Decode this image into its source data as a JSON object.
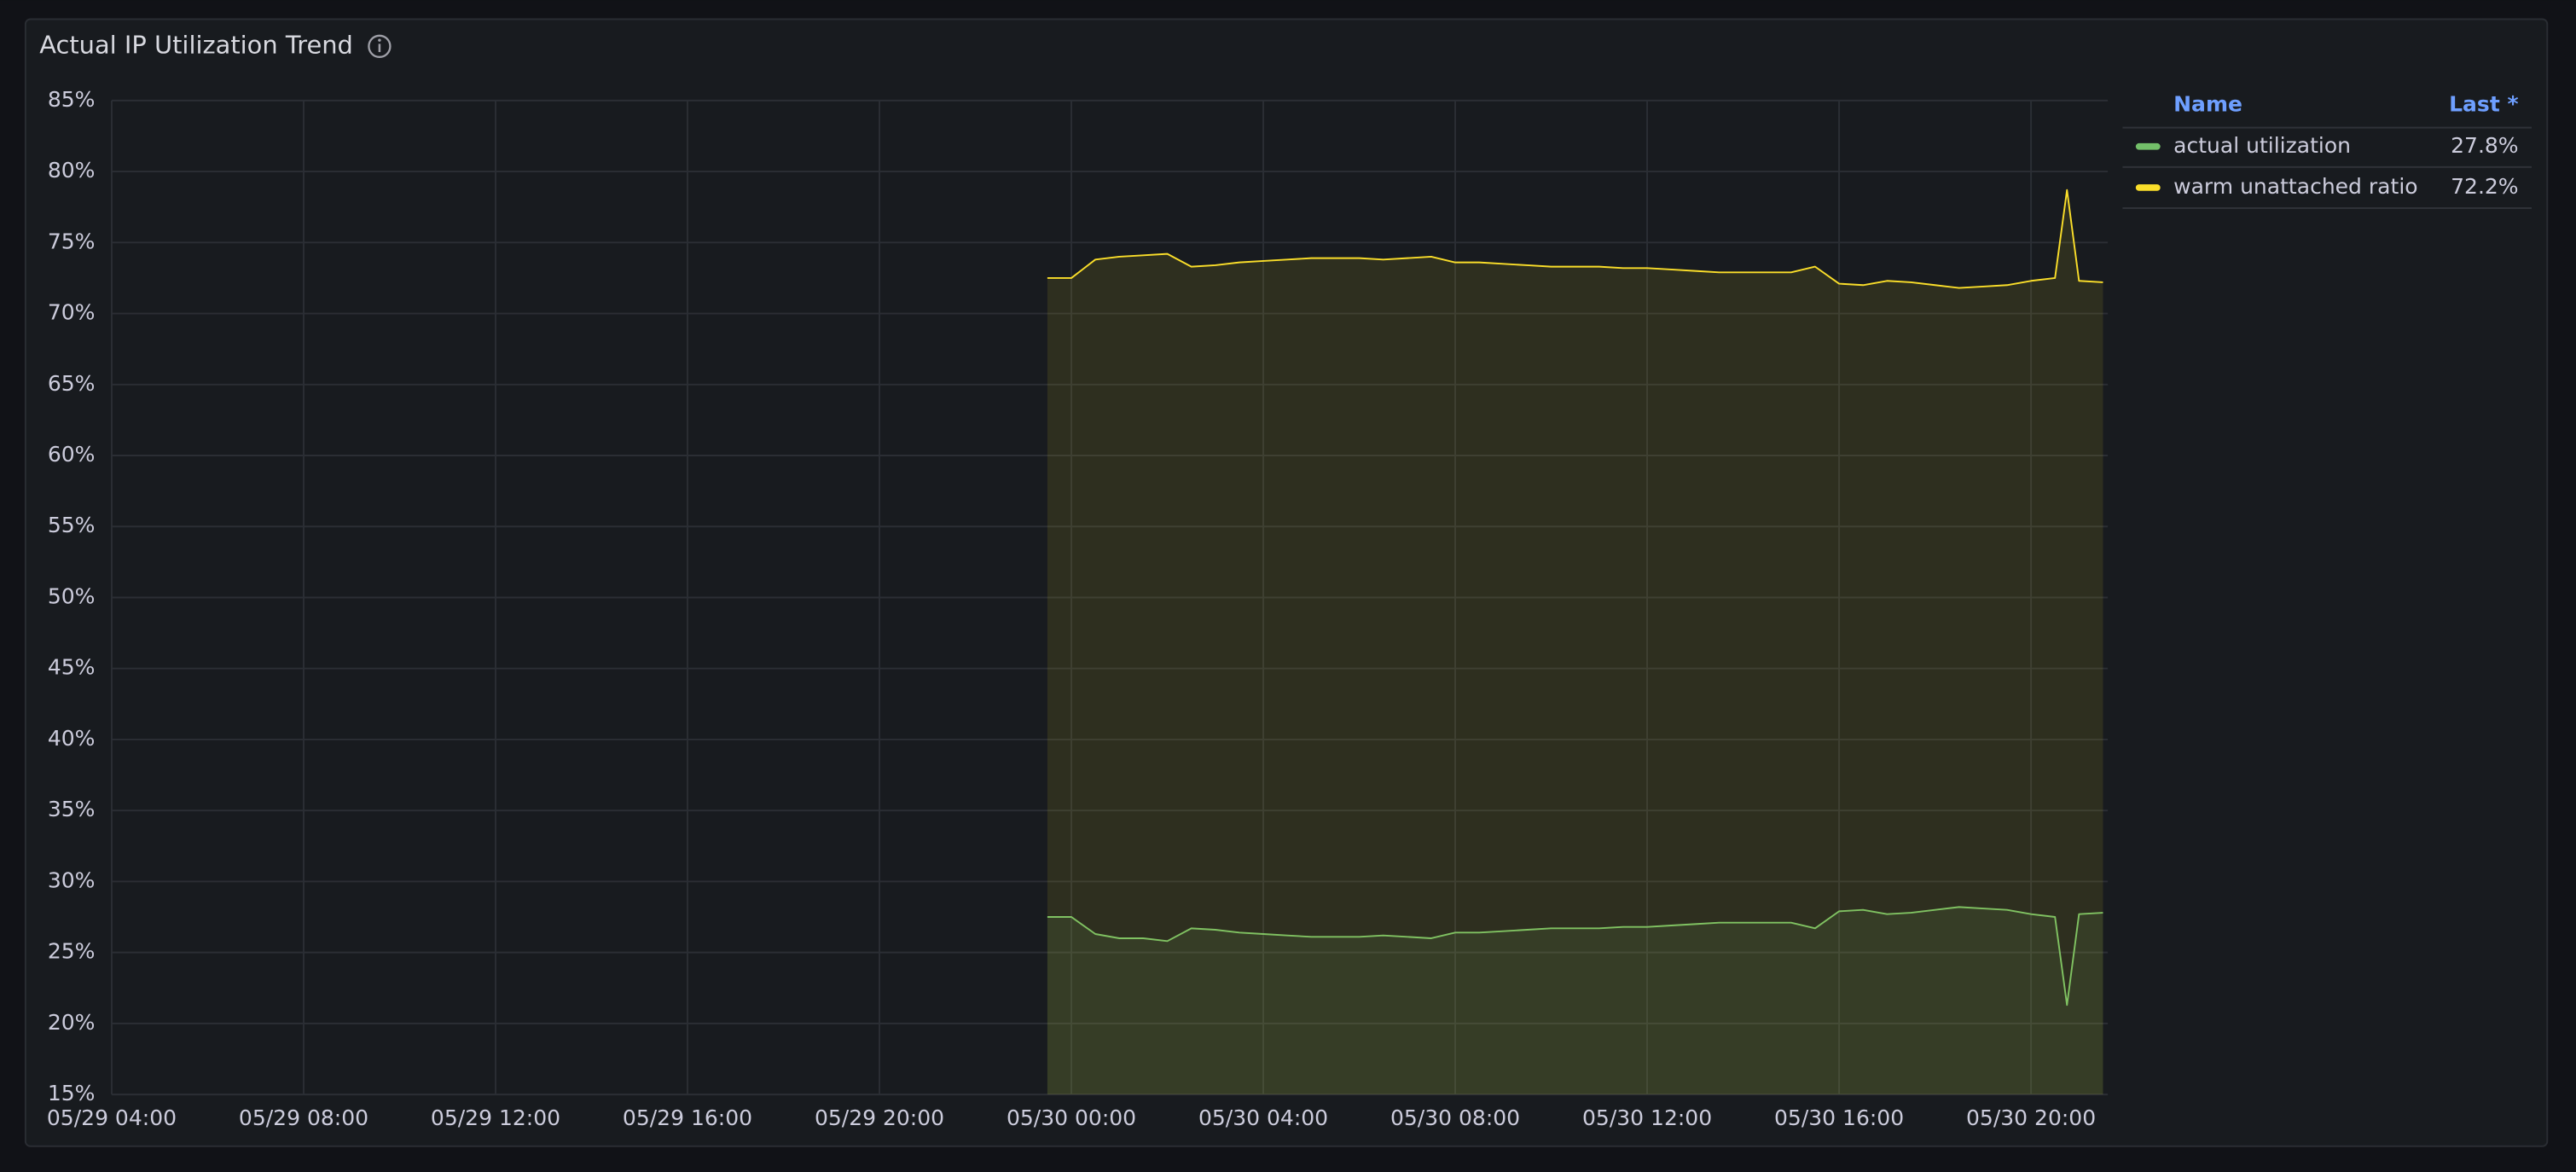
{
  "chart_data": {
    "type": "line",
    "title": "Actual IP Utilization Trend",
    "legend_columns": [
      "Name",
      "Last *"
    ],
    "x": [
      "05/29 23:30",
      "05/30 00:00",
      "05/30 00:30",
      "05/30 01:00",
      "05/30 01:30",
      "05/30 02:00",
      "05/30 02:30",
      "05/30 03:00",
      "05/30 03:30",
      "05/30 04:00",
      "05/30 04:30",
      "05/30 05:00",
      "05/30 05:30",
      "05/30 06:00",
      "05/30 06:30",
      "05/30 07:00",
      "05/30 07:30",
      "05/30 08:00",
      "05/30 08:30",
      "05/30 09:00",
      "05/30 09:30",
      "05/30 10:00",
      "05/30 10:30",
      "05/30 11:00",
      "05/30 11:30",
      "05/30 12:00",
      "05/30 12:30",
      "05/30 13:00",
      "05/30 13:30",
      "05/30 14:00",
      "05/30 14:30",
      "05/30 15:00",
      "05/30 15:30",
      "05/30 16:00",
      "05/30 16:30",
      "05/30 17:00",
      "05/30 17:30",
      "05/30 18:00",
      "05/30 18:30",
      "05/30 19:00",
      "05/30 19:30",
      "05/30 20:00",
      "05/30 20:30",
      "05/30 20:45",
      "05/30 21:00",
      "05/30 21:30"
    ],
    "series": [
      {
        "name": "actual utilization",
        "color": "#73bf69",
        "values": [
          27.5,
          27.5,
          26.3,
          26,
          26,
          25.8,
          26.7,
          26.6,
          26.4,
          26.3,
          26.2,
          26.1,
          26.1,
          26.1,
          26.2,
          26.1,
          26,
          26.4,
          26.4,
          26.5,
          26.6,
          26.7,
          26.7,
          26.7,
          26.8,
          26.8,
          26.9,
          27,
          27.1,
          27.1,
          27.1,
          27.1,
          26.7,
          27.9,
          28,
          27.7,
          27.8,
          28,
          28.2,
          28.1,
          28,
          27.7,
          27.5,
          21.3,
          27.7,
          27.8
        ],
        "last": {
          "value": 27.8,
          "label": "27.8%"
        }
      },
      {
        "name": "warm unattached ratio",
        "color": "#fade2a",
        "values": [
          72.5,
          72.5,
          73.8,
          74,
          74.1,
          74.2,
          73.3,
          73.4,
          73.6,
          73.7,
          73.8,
          73.9,
          73.9,
          73.9,
          73.8,
          73.9,
          74,
          73.6,
          73.6,
          73.5,
          73.4,
          73.3,
          73.3,
          73.3,
          73.2,
          73.2,
          73.1,
          73,
          72.9,
          72.9,
          72.9,
          72.9,
          73.3,
          72.1,
          72,
          72.3,
          72.2,
          72,
          71.8,
          71.9,
          72,
          72.3,
          72.5,
          78.7,
          72.3,
          72.2
        ],
        "last": {
          "value": 72.2,
          "label": "72.2%"
        }
      }
    ],
    "xlim": [
      "05/29 04:00",
      "05/30 21:36"
    ],
    "xticks": [
      "05/29 04:00",
      "05/29 08:00",
      "05/29 12:00",
      "05/29 16:00",
      "05/29 20:00",
      "05/30 00:00",
      "05/30 04:00",
      "05/30 08:00",
      "05/30 12:00",
      "05/30 16:00",
      "05/30 20:00"
    ],
    "ylim": [
      15,
      85
    ],
    "yticks": [
      {
        "value": 15,
        "label": "15%"
      },
      {
        "value": 20,
        "label": "20%"
      },
      {
        "value": 25,
        "label": "25%"
      },
      {
        "value": 30,
        "label": "30%"
      },
      {
        "value": 35,
        "label": "35%"
      },
      {
        "value": 40,
        "label": "40%"
      },
      {
        "value": 45,
        "label": "45%"
      },
      {
        "value": 50,
        "label": "50%"
      },
      {
        "value": 55,
        "label": "55%"
      },
      {
        "value": 60,
        "label": "60%"
      },
      {
        "value": 65,
        "label": "65%"
      },
      {
        "value": 70,
        "label": "70%"
      },
      {
        "value": 75,
        "label": "75%"
      },
      {
        "value": 80,
        "label": "80%"
      },
      {
        "value": 85,
        "label": "85%"
      }
    ],
    "grid": true,
    "fill_area": true
  }
}
